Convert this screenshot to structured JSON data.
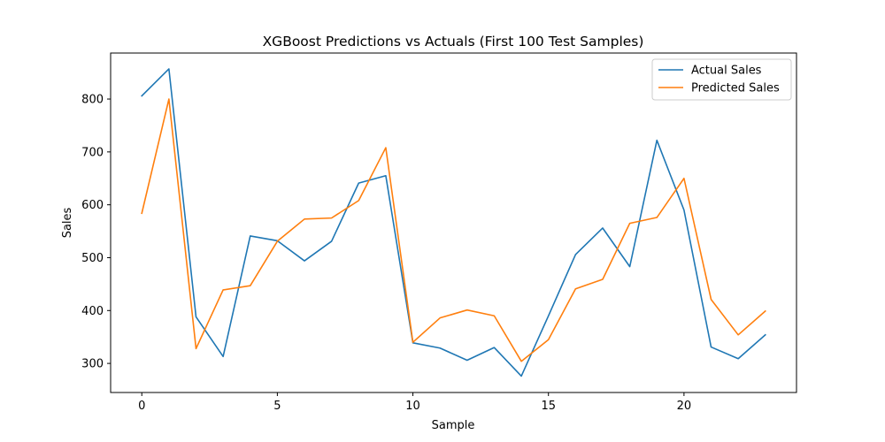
{
  "chart_data": {
    "type": "line",
    "title": "XGBoost Predictions vs Actuals (First 100 Test Samples)",
    "xlabel": "Sample",
    "ylabel": "Sales",
    "xlim": [
      -1.15,
      24.15
    ],
    "ylim": [
      245,
      887
    ],
    "xticks": [
      0,
      5,
      10,
      15,
      20
    ],
    "yticks": [
      300,
      400,
      500,
      600,
      700,
      800
    ],
    "grid": false,
    "legend_position": "top-right",
    "x": [
      0,
      1,
      2,
      3,
      4,
      5,
      6,
      7,
      8,
      9,
      10,
      11,
      12,
      13,
      14,
      15,
      16,
      17,
      18,
      19,
      20,
      21,
      22,
      23
    ],
    "series": [
      {
        "name": "Actual Sales",
        "color": "#1f77b4",
        "values": [
          806,
          857,
          388,
          313,
          541,
          532,
          494,
          531,
          641,
          655,
          339,
          329,
          306,
          330,
          276,
          390,
          506,
          556,
          483,
          722,
          590,
          331,
          309,
          354
        ]
      },
      {
        "name": "Predicted Sales",
        "color": "#ff7f0e",
        "values": [
          584,
          800,
          328,
          439,
          447,
          531,
          573,
          575,
          608,
          708,
          340,
          386,
          401,
          390,
          304,
          345,
          441,
          459,
          565,
          576,
          650,
          421,
          354,
          399
        ]
      }
    ]
  }
}
